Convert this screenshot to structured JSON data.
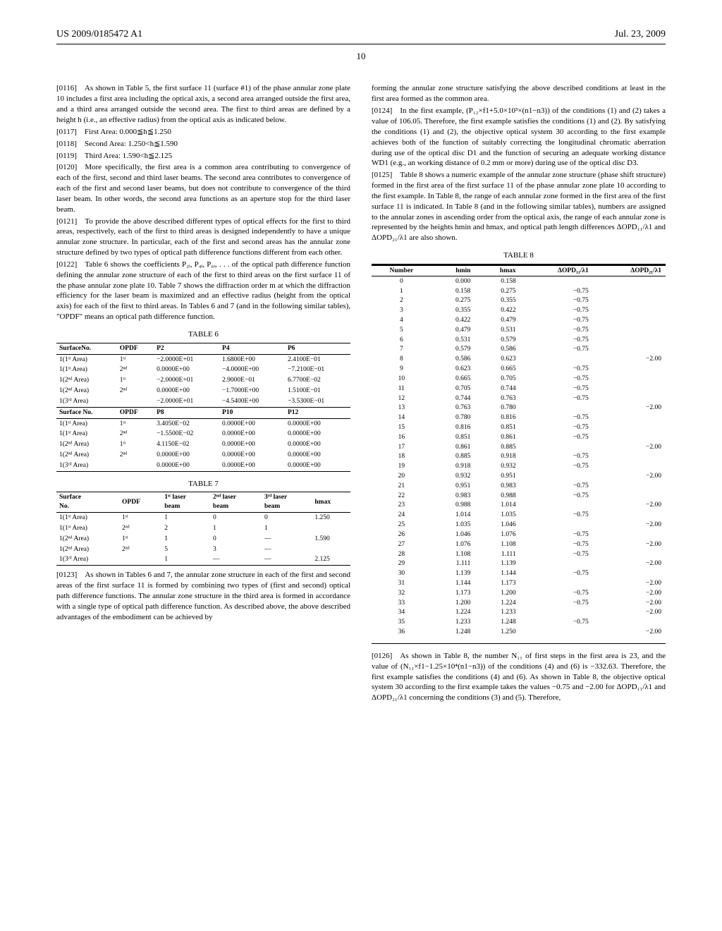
{
  "header": {
    "left": "US 2009/0185472 A1",
    "right": "Jul. 23, 2009"
  },
  "page_number": "10",
  "left_col": {
    "p0116": "[0116] As shown in Table 5, the first surface 11 (surface #1) of the phase annular zone plate 10 includes a first area including the optical axis, a second area arranged outside the first area, and a third area arranged outside the second area. The first to third areas are defined by a height h (i.e., an effective radius) from the optical axis as indicated below.",
    "p0117": "[0117] First Area: 0.000≦h≦1.250",
    "p0118": "[0118] Second Area: 1.250<h≦1.590",
    "p0119": "[0119] Third Area: 1.590<h≦2.125",
    "p0120": "[0120] More specifically, the first area is a common area contributing to convergence of each of the first, second and third laser beams. The second area contributes to convergence of each of the first and second laser beams, but does not contribute to convergence of the third laser beam. In other words, the second area functions as an aperture stop for the third laser beam.",
    "p0121": "[0121] To provide the above described different types of optical effects for the first to third areas, respectively, each of the first to third areas is designed independently to have a unique annular zone structure. In particular, each of the first and second areas has the annular zone structure defined by two types of optical path difference functions different from each other.",
    "p0122": "[0122] Table 6 shows the coefficients P₂ᵢ, P₄ᵢ, P₆ᵢ, . . . of the optical path difference function defining the annular zone structure of each of the first to third areas on the first surface 11 of the phase annular zone plate 10. Table 7 shows the diffraction order m at which the diffraction efficiency for the laser beam is maximized and an effective radius (height from the optical axis) for each of the first to third areas. In Tables 6 and 7 (and in the following similar tables), \"OPDF\" means an optical path difference function.",
    "table6": {
      "caption": "TABLE 6",
      "head1": [
        "SurfaceNo.",
        "OPDF",
        "P2",
        "P4",
        "P6"
      ],
      "rows1": [
        [
          "1(1ˢᵗ Area)",
          "1ˢᵗ",
          "−2.0000E+01",
          "1.6800E+00",
          "2.4100E−01"
        ],
        [
          "1(1ˢᵗ Area)",
          "2ⁿᵈ",
          "0.0000E+00",
          "−4.0000E+00",
          "−7.2100E−01"
        ],
        [
          "1(2ⁿᵈ Area)",
          "1ˢᵗ",
          "−2.0000E+01",
          "2.9000E−01",
          "6.7700E−02"
        ],
        [
          "1(2ⁿᵈ Area)",
          "2ⁿᵈ",
          "0.0000E+00",
          "−1.7000E+00",
          "1.5100E−01"
        ],
        [
          "1(3ʳᵈ Area)",
          "",
          "−2.0000E+01",
          "−4.5400E+00",
          "−3.5300E−01"
        ]
      ],
      "head2": [
        "Surface No.",
        "OPDF",
        "P8",
        "P10",
        "P12"
      ],
      "rows2": [
        [
          "1(1ˢᵗ Area)",
          "1ˢᵗ",
          "3.4050E−02",
          "0.0000E+00",
          "0.0000E+00"
        ],
        [
          "1(1ˢᵗ Area)",
          "2ⁿᵈ",
          "−1.5500E−02",
          "0.0000E+00",
          "0.0000E+00"
        ],
        [
          "1(2ⁿᵈ Area)",
          "1ˢᵗ",
          "4.1150E−02",
          "0.0000E+00",
          "0.0000E+00"
        ],
        [
          "1(2ⁿᵈ Area)",
          "2ⁿᵈ",
          "0.0000E+00",
          "0.0000E+00",
          "0.0000E+00"
        ],
        [
          "1(3ʳᵈ Area)",
          "",
          "0.0000E+00",
          "0.0000E+00",
          "0.0000E+00"
        ]
      ]
    },
    "table7": {
      "caption": "TABLE 7",
      "head": [
        "Surface\nNo.",
        "OPDF",
        "1ˢᵗ laser\nbeam",
        "2ⁿᵈ laser\nbeam",
        "3ʳᵈ laser\nbeam",
        "hmax"
      ],
      "rows": [
        [
          "1(1ˢᵗ Area)",
          "1ˢᵗ",
          "1",
          "0",
          "0",
          "1.250"
        ],
        [
          "1(1ˢᵗ Area)",
          "2ⁿᵈ",
          "2",
          "1",
          "1",
          ""
        ],
        [
          "1(2ⁿᵈ Area)",
          "1ˢᵗ",
          "1",
          "0",
          "—",
          "1.590"
        ],
        [
          "1(2ⁿᵈ Area)",
          "2ⁿᵈ",
          "5",
          "3",
          "—",
          ""
        ],
        [
          "1(3ʳᵈ Area)",
          "",
          "1",
          "—",
          "—",
          "2.125"
        ]
      ]
    },
    "p0123": "[0123] As shown in Tables 6 and 7, the annular zone structure in each of the first and second areas of the first surface 11 is formed by combining two types of (first and second) optical path difference functions. The annular zone structure in the third area is formed in accordance with a single type of optical path difference function. As described above, the above described advantages of the embodiment can be achieved by"
  },
  "right_col": {
    "p_cont": "forming the annular zone structure satisfying the above described conditions at least in the first area formed as the common area.",
    "p0124": "[0124] In the first example, (P₁₂×f1+5.0×10³×(n1−n3)) of the conditions (1) and (2) takes a value of 106.05. Therefore, the first example satisfies the conditions (1) and (2). By satisfying the conditions (1) and (2), the objective optical system 30 according to the first example achieves both of the function of suitably correcting the longitudinal chromatic aberration during use of the optical disc D1 and the function of securing an adequate working distance WD1 (e.g., an working distance of 0.2 mm or more) during use of the optical disc D3.",
    "p0125": "[0125] Table 8 shows a numeric example of the annular zone structure (phase shift structure) formed in the first area of the first surface 11 of the phase annular zone plate 10 according to the first example. In Table 8, the range of each annular zone formed in the first area of the first surface 11 is indicated. In Table 8 (and in the following similar tables), numbers are assigned to the annular zones in ascending order from the optical axis, the range of each annular zone is represented by the heights hmin and hmax, and optical path length differences ΔOPD₁₁/λ1 and ΔOPD₂₁/λ1 are also shown.",
    "table8": {
      "caption": "TABLE 8",
      "head": [
        "Number",
        "hmin",
        "hmax",
        "ΔOPD₁₁/λ1",
        "ΔOPD₂₁/λ1"
      ],
      "rows": [
        [
          "0",
          "0.000",
          "0.158",
          "",
          ""
        ],
        [
          "1",
          "0.158",
          "0.275",
          "−0.75",
          ""
        ],
        [
          "2",
          "0.275",
          "0.355",
          "−0.75",
          ""
        ],
        [
          "3",
          "0.355",
          "0.422",
          "−0.75",
          ""
        ],
        [
          "4",
          "0.422",
          "0.479",
          "−0.75",
          ""
        ],
        [
          "5",
          "0.479",
          "0.531",
          "−0.75",
          ""
        ],
        [
          "6",
          "0.531",
          "0.579",
          "−0.75",
          ""
        ],
        [
          "7",
          "0.579",
          "0.586",
          "−0.75",
          ""
        ],
        [
          "8",
          "0.586",
          "0.623",
          "",
          "−2.00"
        ],
        [
          "9",
          "0.623",
          "0.665",
          "−0.75",
          ""
        ],
        [
          "10",
          "0.665",
          "0.705",
          "−0.75",
          ""
        ],
        [
          "11",
          "0.705",
          "0.744",
          "−0.75",
          ""
        ],
        [
          "12",
          "0.744",
          "0.763",
          "−0.75",
          ""
        ],
        [
          "13",
          "0.763",
          "0.780",
          "",
          "−2.00"
        ],
        [
          "14",
          "0.780",
          "0.816",
          "−0.75",
          ""
        ],
        [
          "15",
          "0.816",
          "0.851",
          "−0.75",
          ""
        ],
        [
          "16",
          "0.851",
          "0.861",
          "−0.75",
          ""
        ],
        [
          "17",
          "0.861",
          "0.885",
          "",
          "−2.00"
        ],
        [
          "18",
          "0.885",
          "0.918",
          "−0.75",
          ""
        ],
        [
          "19",
          "0.918",
          "0.932",
          "−0.75",
          ""
        ],
        [
          "20",
          "0.932",
          "0.951",
          "",
          "−2.00"
        ],
        [
          "21",
          "0.951",
          "0.983",
          "−0.75",
          ""
        ],
        [
          "22",
          "0.983",
          "0.988",
          "−0.75",
          ""
        ],
        [
          "23",
          "0.988",
          "1.014",
          "",
          "−2.00"
        ],
        [
          "24",
          "1.014",
          "1.035",
          "−0.75",
          ""
        ],
        [
          "25",
          "1.035",
          "1.046",
          "",
          "−2.00"
        ],
        [
          "26",
          "1.046",
          "1.076",
          "−0.75",
          ""
        ],
        [
          "27",
          "1.076",
          "1.108",
          "−0.75",
          "−2.00"
        ],
        [
          "28",
          "1.108",
          "1.111",
          "−0.75",
          ""
        ],
        [
          "29",
          "1.111",
          "1.139",
          "",
          "−2.00"
        ],
        [
          "30",
          "1.139",
          "1.144",
          "−0.75",
          ""
        ],
        [
          "31",
          "1.144",
          "1.173",
          "",
          "−2.00"
        ],
        [
          "32",
          "1.173",
          "1.200",
          "−0.75",
          "−2.00"
        ],
        [
          "33",
          "1.200",
          "1.224",
          "−0.75",
          "−2.00"
        ],
        [
          "34",
          "1.224",
          "1.233",
          "",
          "−2.00"
        ],
        [
          "35",
          "1.233",
          "1.248",
          "−0.75",
          ""
        ],
        [
          "36",
          "1.248",
          "1.250",
          "",
          "−2.00"
        ]
      ]
    },
    "p0126": "[0126] As shown in Table 8, the number N₁₁ of first steps in the first area is 23, and the value of (N₁₁×f1−1.25×10⁴(n1−n3)) of the conditions (4) and (6) is −332.63. Therefore, the first example satisfies the conditions (4) and (6). As shown in Table 8, the objective optical system 30 according to the first example takes the values −0.75 and −2.00 for ΔOPD₁₁/λ1 and ΔOPD₂₁/λ1 concerning the conditions (3) and (5). Therefore,"
  }
}
